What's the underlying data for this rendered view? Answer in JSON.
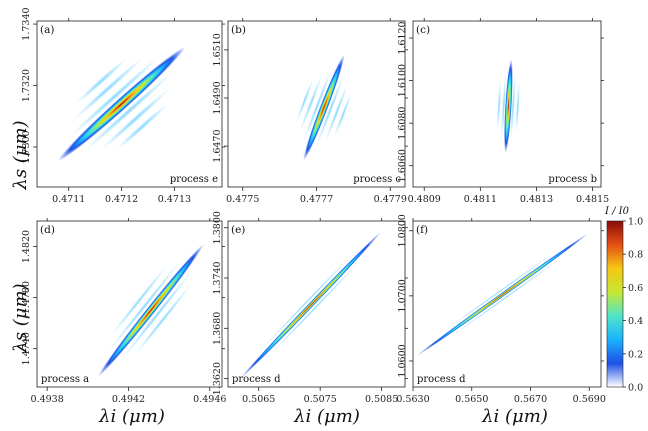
{
  "figure": {
    "ylabel": "λs (μm)",
    "xlabel": "λi (μm)",
    "colorbar_label": "I / I0"
  },
  "chart_data": [
    {
      "type": "heatmap",
      "panel": "(a)",
      "annotation": "process e",
      "xlim": [
        4710.4,
        4713.9
      ],
      "ylim": [
        17287,
        17341
      ],
      "scale": 10000,
      "xticks": [
        4711,
        4712,
        4713
      ],
      "xtick_labels": [
        "0.4711",
        "0.4712",
        "0.4713"
      ],
      "yticks": [
        17300,
        17320,
        17340
      ],
      "ytick_labels": [
        "1.7300",
        "1.7320",
        "1.7340"
      ],
      "center": [
        4712.0,
        17314
      ],
      "half_length": [
        1.2,
        18.5
      ],
      "width": 0.07,
      "fringe_spacing": 0.12,
      "fringes": 3
    },
    {
      "type": "heatmap",
      "panel": "(b)",
      "annotation": "process c",
      "xlim": [
        4774.6,
        4779.4
      ],
      "ylim": [
        16453,
        16522
      ],
      "scale": 10000,
      "xticks": [
        4775,
        4777,
        4779
      ],
      "xtick_labels": [
        "0.4775",
        "0.4777",
        "0.4779"
      ],
      "yticks": [
        16470,
        16490,
        16510
      ],
      "ytick_labels": [
        "1.6470",
        "1.6490",
        "1.6510"
      ],
      "center": [
        4777.2,
        16486
      ],
      "half_length": [
        0.55,
        22
      ],
      "width": 0.07,
      "fringe_spacing": 0.12,
      "fringes": 3
    },
    {
      "type": "heatmap",
      "panel": "(c)",
      "annotation": "process b",
      "xlim": [
        4808.6,
        4815.3
      ],
      "ylim": [
        16050,
        16128
      ],
      "scale": 10000,
      "xticks": [
        4809,
        4811,
        4813,
        4815
      ],
      "xtick_labels": [
        "0.4809",
        "0.4811",
        "0.4813",
        "0.4815"
      ],
      "yticks": [
        16060,
        16080,
        16100,
        16120
      ],
      "ytick_labels": [
        "1.6060",
        "1.6080",
        "1.6100",
        "1.6120"
      ],
      "center": [
        4812.0,
        16088
      ],
      "half_length": [
        0.1,
        22
      ],
      "width": 0.07,
      "fringe_spacing": 0.1,
      "fringes": 2
    },
    {
      "type": "heatmap",
      "panel": "(d)",
      "annotation": "process a",
      "xlim": [
        4937.5,
        4946.6
      ],
      "ylim": [
        14710,
        14840
      ],
      "scale": 10000,
      "xticks": [
        4938,
        4942,
        4946
      ],
      "xtick_labels": [
        "0.4938",
        "0.4942",
        "0.4946"
      ],
      "yticks": [
        14740,
        14780,
        14820
      ],
      "ytick_labels": [
        "1.4740",
        "1.4780",
        "1.4820"
      ],
      "center": [
        4943.1,
        14770
      ],
      "half_length": [
        2.6,
        52
      ],
      "width": 0.05,
      "fringe_spacing": 0.09,
      "fringes": 2
    },
    {
      "type": "heatmap",
      "panel": "(e)",
      "annotation": "process d",
      "xlim": [
        5060,
        5088.8
      ],
      "ylim": [
        13610,
        13808
      ],
      "scale": 10000,
      "xticks": [
        5065,
        5075,
        5085
      ],
      "xtick_labels": [
        "0.5065",
        "0.5075",
        "0.5085"
      ],
      "yticks": [
        13620,
        13680,
        13740,
        13800
      ],
      "ytick_labels": [
        "1.3620",
        "1.3680",
        "1.3740",
        "1.3800"
      ],
      "center": [
        5073.5,
        13708
      ],
      "half_length": [
        11.5,
        88
      ],
      "width": 0.025,
      "fringe_spacing": 0.05,
      "fringes": 1
    },
    {
      "type": "heatmap",
      "panel": "(f)",
      "annotation": "process d",
      "xlim": [
        5630,
        5694
      ],
      "ylim": [
        10560,
        10815
      ],
      "scale": 10000,
      "xticks": [
        5630,
        5650,
        5670,
        5690
      ],
      "xtick_labels": [
        "0.5630",
        "0.5650",
        "0.5670",
        "0.5690"
      ],
      "yticks": [
        10600,
        10700,
        10800
      ],
      "ytick_labels": [
        "1.0600",
        "1.0700",
        "1.0800"
      ],
      "center": [
        5660.5,
        10702
      ],
      "half_length": [
        29.5,
        95
      ],
      "width": 0.02,
      "fringe_spacing": 0.04,
      "fringes": 1
    }
  ],
  "colorbar": {
    "range": [
      0.0,
      1.0
    ],
    "ticks": [
      0.0,
      0.2,
      0.4,
      0.6,
      0.8,
      1.0
    ],
    "tick_labels": [
      "0.0",
      "0.2",
      "0.4",
      "0.6",
      "0.8",
      "1.0"
    ],
    "colormap": [
      "#ffffff",
      "#1e50e6",
      "#19b4ff",
      "#50e6c8",
      "#c8e632",
      "#f5c814",
      "#e65014",
      "#8b0a0a"
    ]
  }
}
